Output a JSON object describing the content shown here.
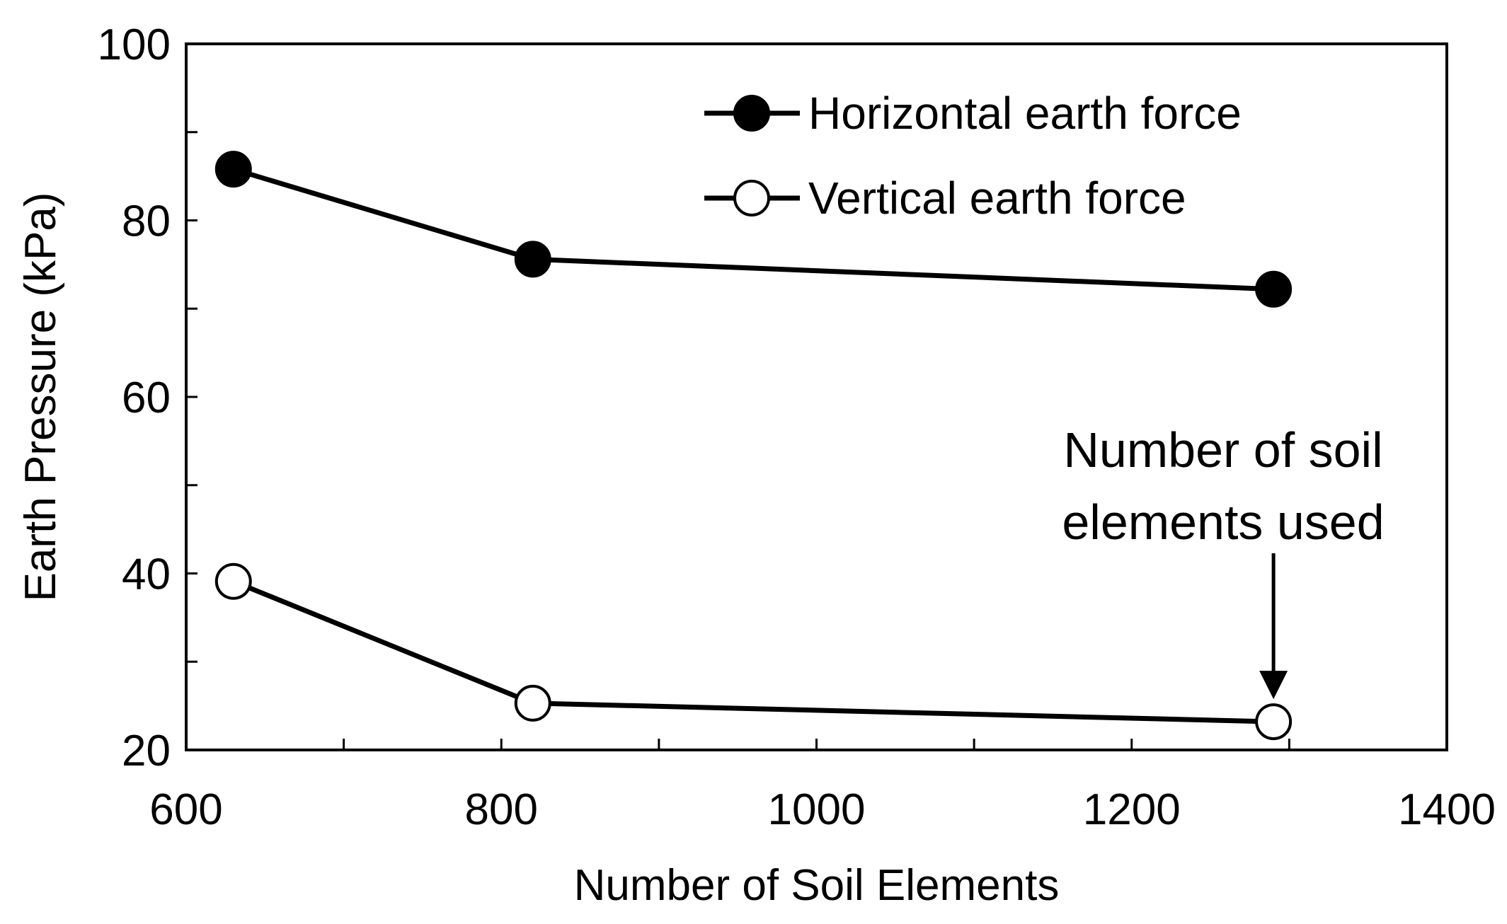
{
  "chart_data": {
    "type": "line",
    "xlabel": "Number of Soil Elements",
    "ylabel": "Earth Pressure (kPa)",
    "xlim": [
      600,
      1400
    ],
    "ylim": [
      20,
      100
    ],
    "x_ticks": [
      600,
      800,
      1000,
      1200,
      1400
    ],
    "x_minor_step": 100,
    "y_ticks": [
      20,
      40,
      60,
      80,
      100
    ],
    "y_minor_step": 10,
    "x_tick_labels": [
      "600",
      "800",
      "1000",
      "1200",
      "1400"
    ],
    "y_tick_labels": [
      "20",
      "40",
      "60",
      "80",
      "100"
    ],
    "grid": false,
    "legend_position": "top-right",
    "series": [
      {
        "name": "Horizontal earth force",
        "marker": "filled-circle",
        "color": "#000000",
        "x": [
          630,
          820,
          1290
        ],
        "y": [
          85.8,
          75.6,
          72.2
        ]
      },
      {
        "name": "Vertical earth force",
        "marker": "open-circle",
        "color": "#000000",
        "x": [
          630,
          820,
          1290
        ],
        "y": [
          39.1,
          25.3,
          23.2
        ]
      }
    ],
    "annotations": [
      {
        "lines": [
          "Number of soil",
          "elements used"
        ],
        "arrow_to": {
          "x": 1290,
          "y": 23.2
        }
      }
    ]
  }
}
